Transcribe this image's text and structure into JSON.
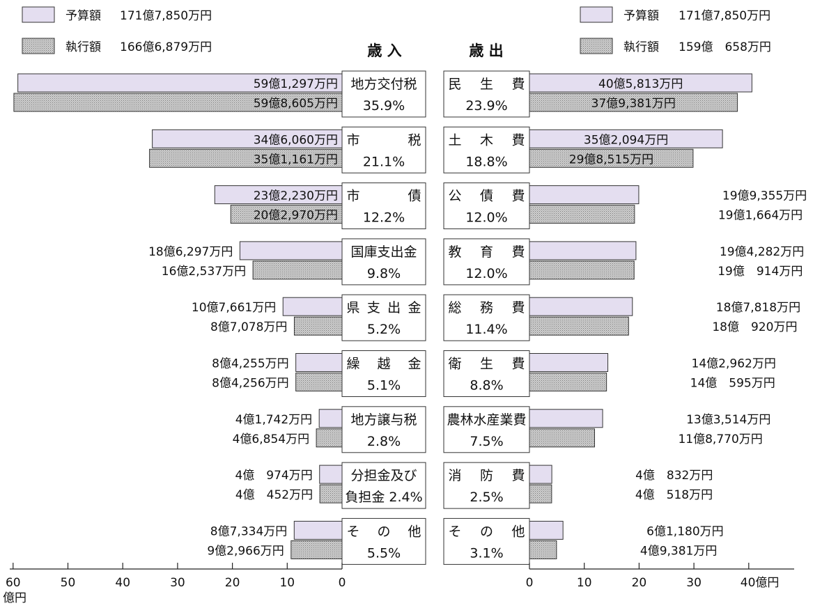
{
  "chart_data": {
    "type": "bar",
    "titles": {
      "revenue": "歳 入",
      "expenditure": "歳 出"
    },
    "legend": {
      "revenue": [
        {
          "label": "予算額",
          "value": "171億7,850万円"
        },
        {
          "label": "執行額",
          "value": "166億6,879万円"
        }
      ],
      "expenditure": [
        {
          "label": "予算額",
          "value": "171億7,850万円"
        },
        {
          "label": "執行額",
          "value": "159億　658万円"
        }
      ]
    },
    "axis": {
      "left_ticks": [
        "60",
        "50",
        "40",
        "30",
        "20",
        "10",
        "0"
      ],
      "right_ticks": [
        "0",
        "10",
        "20",
        "30",
        "40億円"
      ],
      "left_unit": "億円",
      "left_max": 60,
      "right_max": 40
    },
    "colors": {
      "budget": "#e4def0",
      "executed": "#bdbdbd"
    },
    "revenue": [
      {
        "category": [
          "地方交付税"
        ],
        "percent": "35.9%",
        "budget": 59.13,
        "executed": 59.86,
        "budget_label": "59億1,297万円",
        "executed_label": "59億8,605万円"
      },
      {
        "category": [
          "市",
          "税"
        ],
        "percent": "21.1%",
        "budget": 34.61,
        "executed": 35.12,
        "budget_label": "34億6,060万円",
        "executed_label": "35億1,161万円"
      },
      {
        "category": [
          "市",
          "債"
        ],
        "percent": "12.2%",
        "budget": 23.22,
        "executed": 20.3,
        "budget_label": "23億2,230万円",
        "executed_label": "20億2,970万円"
      },
      {
        "category": [
          "国庫支出金"
        ],
        "percent": "9.8%",
        "budget": 18.63,
        "executed": 16.25,
        "budget_label": "18億6,297万円",
        "executed_label": "16億2,537万円"
      },
      {
        "category": [
          "県",
          "支",
          "出",
          "金"
        ],
        "percent": "5.2%",
        "budget": 10.77,
        "executed": 8.71,
        "budget_label": "10億7,661万円",
        "executed_label": "8億7,078万円"
      },
      {
        "category": [
          "繰",
          "越",
          "金"
        ],
        "percent": "5.1%",
        "budget": 8.43,
        "executed": 8.43,
        "budget_label": "8億4,255万円",
        "executed_label": "8億4,256万円"
      },
      {
        "category": [
          "地方譲与税"
        ],
        "percent": "2.8%",
        "budget": 4.17,
        "executed": 4.69,
        "budget_label": "4億1,742万円",
        "executed_label": "4億6,854万円"
      },
      {
        "category": [
          "分担金及び",
          "負担金"
        ],
        "percent": "2.4%",
        "budget": 4.1,
        "executed": 4.05,
        "budget_label": "4億　974万円",
        "executed_label": "4億　452万円"
      },
      {
        "category": [
          "そ",
          "の",
          "他"
        ],
        "percent": "5.5%",
        "budget": 8.73,
        "executed": 9.3,
        "budget_label": "8億7,334万円",
        "executed_label": "9億2,966万円"
      }
    ],
    "expenditure": [
      {
        "category": [
          "民",
          "生",
          "費"
        ],
        "percent": "23.9%",
        "budget": 40.58,
        "executed": 37.94,
        "budget_label": "40億5,813万円",
        "executed_label": "37億9,381万円"
      },
      {
        "category": [
          "土",
          "木",
          "費"
        ],
        "percent": "18.8%",
        "budget": 35.21,
        "executed": 29.85,
        "budget_label": "35億2,094万円",
        "executed_label": "29億8,515万円"
      },
      {
        "category": [
          "公",
          "債",
          "費"
        ],
        "percent": "12.0%",
        "budget": 19.94,
        "executed": 19.17,
        "budget_label": "19億9,355万円",
        "executed_label": "19億1,664万円"
      },
      {
        "category": [
          "教",
          "育",
          "費"
        ],
        "percent": "12.0%",
        "budget": 19.43,
        "executed": 19.09,
        "budget_label": "19億4,282万円",
        "executed_label": "19億　914万円"
      },
      {
        "category": [
          "総",
          "務",
          "費"
        ],
        "percent": "11.4%",
        "budget": 18.78,
        "executed": 18.09,
        "budget_label": "18億7,818万円",
        "executed_label": "18億　920万円"
      },
      {
        "category": [
          "衛",
          "生",
          "費"
        ],
        "percent": "8.8%",
        "budget": 14.3,
        "executed": 14.06,
        "budget_label": "14億2,962万円",
        "executed_label": "14億　595万円"
      },
      {
        "category": [
          "農林水産業費"
        ],
        "percent": "7.5%",
        "budget": 13.35,
        "executed": 11.88,
        "budget_label": "13億3,514万円",
        "executed_label": "11億8,770万円"
      },
      {
        "category": [
          "消",
          "防",
          "費"
        ],
        "percent": "2.5%",
        "budget": 4.08,
        "executed": 4.05,
        "budget_label": "4億　832万円",
        "executed_label": "4億　518万円"
      },
      {
        "category": [
          "そ",
          "の",
          "他"
        ],
        "percent": "3.1%",
        "budget": 6.12,
        "executed": 4.94,
        "budget_label": "6億1,180万円",
        "executed_label": "4億9,381万円"
      }
    ]
  }
}
